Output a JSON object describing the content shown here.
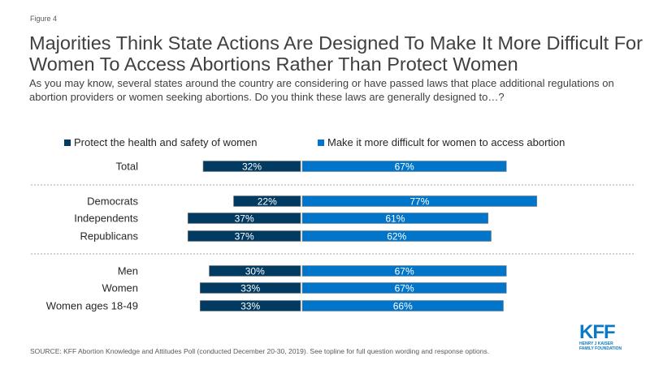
{
  "figure_label": "Figure 4",
  "title": "Majorities Think State Actions Are Designed To Make It More Difficult For Women To Access Abortions Rather Than Protect Women",
  "subtitle": "As you may know, several states around the country are considering or have passed laws that place additional regulations on abortion providers or women seeking abortions. Do you think these laws are generally designed to…?",
  "source": "SOURCE: KFF Abortion Knowledge and Attitudes Poll (conducted December 20-30, 2019). See topline for full question wording and response options.",
  "logo": {
    "main": "KFF",
    "line1": "HENRY J KAISER",
    "line2": "FAMILY FOUNDATION"
  },
  "chart_data": {
    "type": "bar",
    "orientation": "horizontal-diverging",
    "title": "Majorities Think State Actions Are Designed To Make It More Difficult For Women To Access Abortions Rather Than Protect Women",
    "legend_position": "top",
    "categories": [
      "Total",
      "Democrats",
      "Independents",
      "Republicans",
      "Men",
      "Women",
      "Women ages 18-49"
    ],
    "groups": [
      [
        "Total"
      ],
      [
        "Democrats",
        "Independents",
        "Republicans"
      ],
      [
        "Men",
        "Women",
        "Women ages 18-49"
      ]
    ],
    "series": [
      {
        "name": "Protect the health and safety of women",
        "color": "#023b62",
        "values": [
          32,
          22,
          37,
          37,
          30,
          33,
          33
        ],
        "direction": "left"
      },
      {
        "name": "Make it more difficult for women to access abortion",
        "color": "#0075c9",
        "values": [
          67,
          77,
          61,
          62,
          67,
          67,
          66
        ],
        "direction": "right"
      }
    ],
    "value_suffix": "%",
    "xlim": [
      0,
      100
    ]
  }
}
